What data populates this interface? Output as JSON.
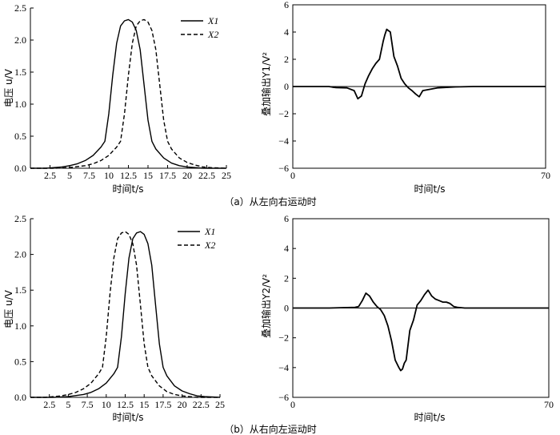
{
  "captions": {
    "a": "（a）从左向右运动时",
    "b": "（b）从右向左运动时"
  },
  "chart_data": [
    {
      "id": "a-left",
      "type": "line",
      "xlabel": "时间t/s",
      "ylabel": "电压 u/V",
      "xlim": [
        0,
        25
      ],
      "ylim": [
        0,
        2.5
      ],
      "xticks": [
        2.5,
        5,
        7.5,
        10,
        12.5,
        15,
        17.5,
        20,
        22.5,
        25
      ],
      "xtick_labels": [
        "2.5",
        "5",
        "7.5",
        "10",
        "12.5",
        "15",
        "17.5",
        "20",
        "22.5",
        "25"
      ],
      "yticks": [
        0,
        0.5,
        1.0,
        1.5,
        2.0,
        2.5
      ],
      "ytick_labels": [
        "0.0",
        "0.5",
        "1.0",
        "1.5",
        "2.0",
        "2.5"
      ],
      "legend_position": "top-right",
      "series": [
        {
          "name": "X1",
          "style": "solid",
          "x": [
            0,
            2,
            3,
            4,
            5,
            6,
            7,
            8,
            9,
            9.5,
            10,
            10.5,
            11,
            11.5,
            12,
            12.5,
            13,
            13.5,
            14,
            14.5,
            15,
            15.5,
            16,
            17,
            18,
            19,
            20,
            22,
            25
          ],
          "y": [
            0,
            0,
            0.01,
            0.02,
            0.04,
            0.07,
            0.12,
            0.2,
            0.33,
            0.42,
            0.85,
            1.45,
            1.95,
            2.22,
            2.3,
            2.32,
            2.28,
            2.15,
            1.85,
            1.3,
            0.75,
            0.42,
            0.3,
            0.16,
            0.08,
            0.04,
            0.02,
            0,
            0
          ]
        },
        {
          "name": "X2",
          "style": "dashed",
          "x": [
            0,
            3,
            5,
            7,
            8,
            9,
            10,
            11,
            11.5,
            12,
            12.5,
            13,
            13.5,
            14,
            14.5,
            15,
            15.5,
            16,
            16.5,
            17,
            17.5,
            18,
            19,
            20,
            21,
            22,
            23,
            25
          ],
          "y": [
            0,
            0,
            0.01,
            0.04,
            0.07,
            0.12,
            0.2,
            0.33,
            0.42,
            0.85,
            1.45,
            1.95,
            2.22,
            2.3,
            2.32,
            2.28,
            2.15,
            1.85,
            1.3,
            0.75,
            0.42,
            0.3,
            0.16,
            0.09,
            0.05,
            0.02,
            0.01,
            0
          ]
        }
      ]
    },
    {
      "id": "a-right",
      "type": "line",
      "xlabel": "时间t/s",
      "ylabel": "叠加输出Y1/V²",
      "xlim": [
        0,
        70
      ],
      "ylim": [
        -6,
        6
      ],
      "xticks": [
        0,
        70
      ],
      "xtick_labels": [
        "0",
        "70"
      ],
      "yticks": [
        -6,
        -4,
        -2,
        0,
        2,
        4,
        6
      ],
      "ytick_labels": [
        "−6",
        "−4",
        "−2",
        "0",
        "2",
        "4",
        "6"
      ],
      "series": [
        {
          "name": "",
          "style": "solid",
          "x": [
            0,
            10,
            11,
            12,
            15,
            17,
            18,
            18.5,
            19,
            20,
            21,
            22,
            23,
            24,
            25,
            25.5,
            26,
            27,
            28,
            29,
            30,
            31,
            32,
            33,
            34,
            35,
            36,
            40,
            45,
            50,
            55,
            60,
            65,
            70
          ],
          "y": [
            0,
            0,
            -0.05,
            -0.08,
            -0.1,
            -0.3,
            -0.9,
            -0.8,
            -0.7,
            0.2,
            0.8,
            1.3,
            1.7,
            2.0,
            3.3,
            3.8,
            4.2,
            4.0,
            2.2,
            1.5,
            0.6,
            0.2,
            -0.1,
            -0.3,
            -0.55,
            -0.75,
            -0.3,
            -0.1,
            -0.03,
            0,
            0,
            0,
            0,
            0
          ]
        }
      ]
    },
    {
      "id": "b-left",
      "type": "line",
      "xlabel": "时间t/s",
      "ylabel": "电压 u/V",
      "xlim": [
        0,
        25
      ],
      "ylim": [
        0,
        2.5
      ],
      "xticks": [
        2.5,
        5,
        7.5,
        10,
        12.5,
        15,
        17.5,
        20,
        22.5,
        25
      ],
      "xtick_labels": [
        "2.5",
        "5",
        "7.5",
        "10",
        "12.5",
        "15",
        "17.5",
        "20",
        "22.5",
        "25"
      ],
      "yticks": [
        0,
        0.5,
        1.0,
        1.5,
        2.0,
        2.5
      ],
      "ytick_labels": [
        "0.0",
        "0.5",
        "1.0",
        "1.5",
        "2.0",
        "2.5"
      ],
      "legend_position": "top-right",
      "series": [
        {
          "name": "X1",
          "style": "solid",
          "x": [
            0,
            3,
            5,
            7,
            8,
            9,
            10,
            11,
            11.5,
            12,
            12.5,
            13,
            13.5,
            14,
            14.5,
            15,
            15.5,
            16,
            16.5,
            17,
            17.5,
            18,
            19,
            20,
            21,
            22,
            23,
            25
          ],
          "y": [
            0,
            0,
            0.01,
            0.04,
            0.07,
            0.12,
            0.2,
            0.33,
            0.42,
            0.85,
            1.45,
            1.95,
            2.22,
            2.3,
            2.32,
            2.28,
            2.15,
            1.85,
            1.3,
            0.75,
            0.42,
            0.3,
            0.16,
            0.09,
            0.05,
            0.02,
            0.01,
            0
          ]
        },
        {
          "name": "X2",
          "style": "dashed",
          "x": [
            0,
            2,
            3,
            4,
            5,
            6,
            7,
            8,
            9,
            9.5,
            10,
            10.5,
            11,
            11.5,
            12,
            12.5,
            13,
            13.5,
            14,
            14.5,
            15,
            15.5,
            16,
            17,
            18,
            19,
            20,
            22,
            25
          ],
          "y": [
            0,
            0,
            0.01,
            0.02,
            0.04,
            0.07,
            0.12,
            0.2,
            0.33,
            0.42,
            0.85,
            1.45,
            1.95,
            2.22,
            2.3,
            2.32,
            2.28,
            2.15,
            1.85,
            1.3,
            0.75,
            0.42,
            0.3,
            0.16,
            0.08,
            0.04,
            0.02,
            0,
            0
          ]
        }
      ]
    },
    {
      "id": "b-right",
      "type": "line",
      "xlabel": "时间t/s",
      "ylabel": "叠加输出Y2/V²",
      "xlim": [
        0,
        70
      ],
      "ylim": [
        -6,
        6
      ],
      "xticks": [
        0,
        70
      ],
      "xtick_labels": [
        "0",
        "70"
      ],
      "yticks": [
        -6,
        -4,
        -2,
        0,
        2,
        4,
        6
      ],
      "ytick_labels": [
        "−6",
        "−4",
        "−2",
        "0",
        "2",
        "4",
        "6"
      ],
      "series": [
        {
          "name": "",
          "style": "solid",
          "x": [
            0,
            10,
            15,
            17,
            18,
            19,
            20,
            21,
            22,
            23,
            24,
            25,
            26,
            27,
            28,
            29,
            29.5,
            30,
            30.5,
            31,
            32,
            33,
            34,
            35,
            36,
            37,
            38,
            39,
            40,
            41,
            42,
            43,
            44,
            45,
            47,
            50,
            55,
            60,
            65,
            70
          ],
          "y": [
            0,
            0,
            0.03,
            0.05,
            0.1,
            0.5,
            1.0,
            0.8,
            0.4,
            0.1,
            -0.1,
            -0.5,
            -1.2,
            -2.2,
            -3.5,
            -4.0,
            -4.2,
            -4.1,
            -3.7,
            -3.5,
            -1.5,
            -0.8,
            0.2,
            0.5,
            0.9,
            1.2,
            0.8,
            0.6,
            0.5,
            0.4,
            0.4,
            0.3,
            0.1,
            0.05,
            0,
            0,
            0,
            0,
            0,
            0
          ]
        }
      ]
    }
  ]
}
